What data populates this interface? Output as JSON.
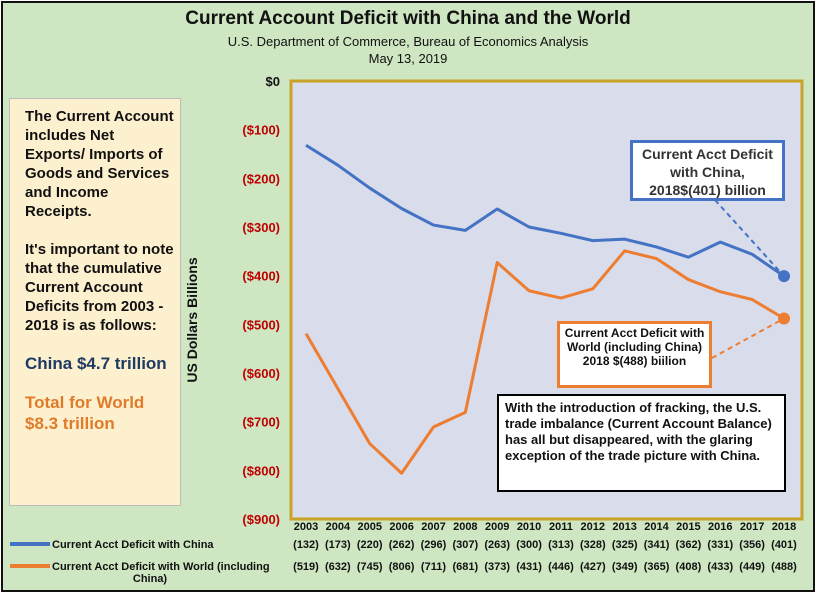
{
  "chart_data": {
    "type": "line",
    "title": "Current Account Deficit with China and the World",
    "subtitle": "U.S. Department of Commerce, Bureau of Economics Analysis",
    "date": "May 13, 2019",
    "ylabel": "US Dollars Billions",
    "xlabel": "",
    "ylim": [
      -900,
      0
    ],
    "yticks": [
      0,
      -100,
      -200,
      -300,
      -400,
      -500,
      -600,
      -700,
      -800,
      -900
    ],
    "ytick_labels": [
      "$0",
      "($100)",
      "($200)",
      "($300)",
      "($400)",
      "($500)",
      "($600)",
      "($700)",
      "($800)",
      "($900)"
    ],
    "categories": [
      "2003",
      "2004",
      "2005",
      "2006",
      "2007",
      "2008",
      "2009",
      "2010",
      "2011",
      "2012",
      "2013",
      "2014",
      "2015",
      "2016",
      "2017",
      "2018"
    ],
    "series": [
      {
        "name": "Current Acct Deficit with China",
        "color": "#4472c4",
        "values": [
          -132,
          -173,
          -220,
          -262,
          -296,
          -307,
          -263,
          -300,
          -313,
          -328,
          -325,
          -341,
          -362,
          -331,
          -356,
          -401
        ],
        "table_labels": [
          "(132)",
          "(173)",
          "(220)",
          "(262)",
          "(296)",
          "(307)",
          "(263)",
          "(300)",
          "(313)",
          "(328)",
          "(325)",
          "(341)",
          "(362)",
          "(331)",
          "(356)",
          "(401)"
        ]
      },
      {
        "name": "Current Acct Deficit with World (including China)",
        "color": "#ed7d31",
        "values": [
          -519,
          -632,
          -745,
          -806,
          -711,
          -681,
          -373,
          -431,
          -446,
          -427,
          -349,
          -365,
          -408,
          -433,
          -449,
          -488
        ],
        "table_labels": [
          "(519)",
          "(632)",
          "(745)",
          "(806)",
          "(711)",
          "(681)",
          "(373)",
          "(431)",
          "(446)",
          "(427)",
          "(349)",
          "(365)",
          "(408)",
          "(433)",
          "(449)",
          "(488)"
        ]
      }
    ],
    "grid": false,
    "plot_background": "#d9dcea",
    "plot_border_color": "#c9a227",
    "tick_label_color": "#c00000",
    "legend": "bottom-table"
  },
  "sidebar": {
    "text": "The Current Account includes Net Exports/ Imports of Goods and Services and Income Receipts.",
    "text2": "It's important to note that the cumulative Current Account Deficits from 2003 - 2018 is as follows:",
    "china_total": "China $4.7 trillion",
    "world_total": "Total for World $8.3 trillion"
  },
  "callouts": {
    "china": "Current Acct Deficit with China, 2018$(401) billion",
    "world": "Current Acct Deficit with World (including China) 2018 $(488) biilion",
    "note": "With the introduction of fracking, the U.S. trade imbalance (Current Account Balance) has all but disappeared, with the glaring exception of the trade picture with China."
  }
}
